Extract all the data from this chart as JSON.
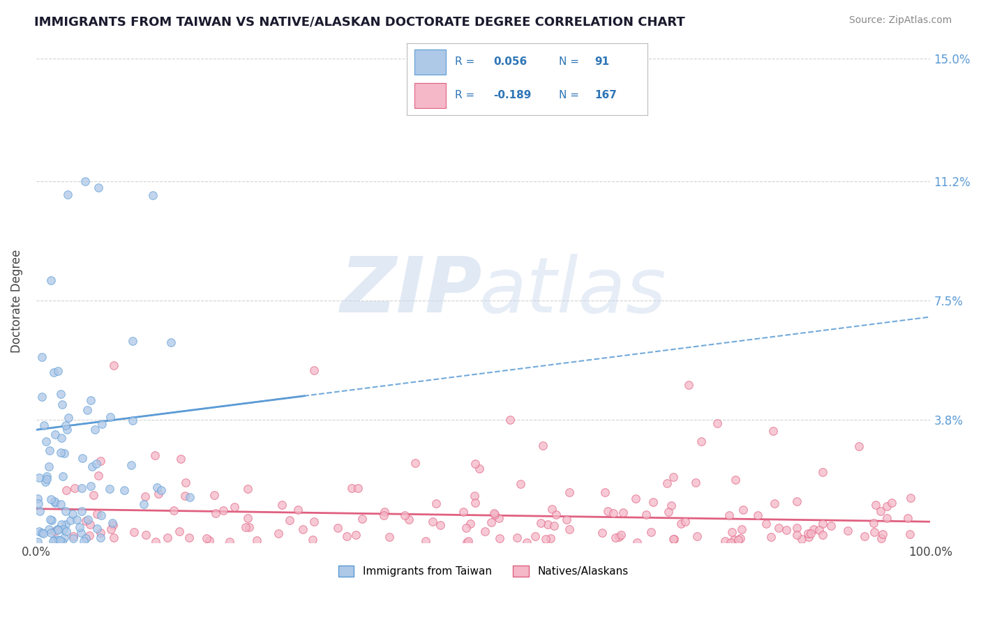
{
  "title": "IMMIGRANTS FROM TAIWAN VS NATIVE/ALASKAN DOCTORATE DEGREE CORRELATION CHART",
  "source": "Source: ZipAtlas.com",
  "ylabel": "Doctorate Degree",
  "xlim": [
    0,
    100
  ],
  "ylim": [
    0,
    15.0
  ],
  "yticks": [
    0,
    3.8,
    7.5,
    11.2,
    15.0
  ],
  "ytick_labels": [
    "",
    "3.8%",
    "7.5%",
    "11.2%",
    "15.0%"
  ],
  "xtick_labels": [
    "0.0%",
    "100.0%"
  ],
  "series": [
    {
      "label": "Immigrants from Taiwan",
      "R": 0.056,
      "N": 91,
      "color": "#aec8e8",
      "edge_color": "#5b9bd5",
      "trend_color": "#5b9bd5"
    },
    {
      "label": "Natives/Alaskans",
      "R": -0.189,
      "N": 167,
      "color": "#f4b8c8",
      "edge_color": "#e06080",
      "trend_color": "#e06080"
    }
  ],
  "legend_color": "#2e75b6",
  "background_color": "#ffffff",
  "grid_color": "#cccccc"
}
